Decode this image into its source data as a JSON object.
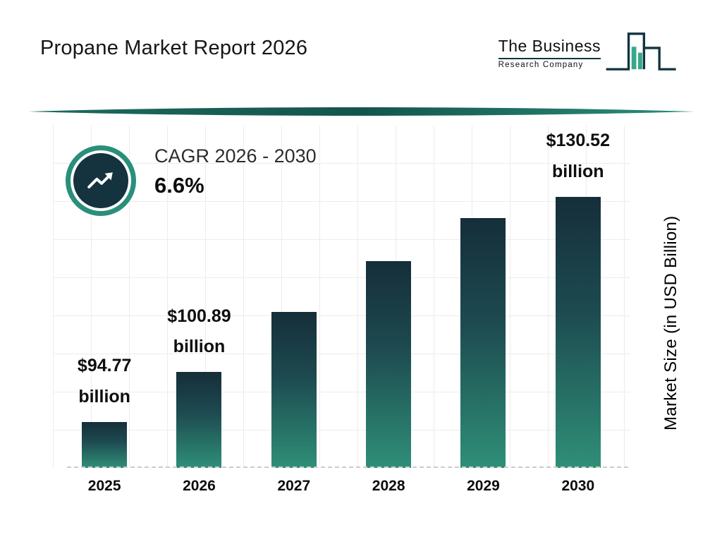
{
  "header": {
    "title": "Propane Market Report 2026",
    "logo": {
      "line1": "The Business",
      "line2": "Research Company"
    }
  },
  "cagr": {
    "label": "CAGR 2026 - 2030",
    "value": "6.6%"
  },
  "axis": {
    "y_label": "Market Size (in USD Billion)"
  },
  "chart_data": {
    "type": "bar",
    "title": "Propane Market Report 2026",
    "categories": [
      "2025",
      "2026",
      "2027",
      "2028",
      "2029",
      "2030"
    ],
    "values": [
      94.77,
      100.89,
      107.55,
      114.65,
      122.21,
      130.52
    ],
    "value_labels": [
      {
        "line1": "$94.77",
        "line2": "billion",
        "full": "$94.77 billion"
      },
      {
        "line1": "$100.89",
        "line2": "billion",
        "full": "$100.89 billion"
      },
      null,
      null,
      null,
      {
        "line1": "$130.52",
        "line2": "billion",
        "full": "$130.52 billion"
      }
    ],
    "xlabel": "",
    "ylabel": "Market Size (in USD Billion)",
    "ylim": [
      87.5,
      135
    ],
    "grid": true,
    "legend": "none",
    "cagr_annotation": {
      "label": "CAGR 2026 - 2030",
      "value": "6.6%"
    },
    "bar_height_pct": [
      13.5,
      28,
      45.5,
      60.5,
      73,
      81
    ],
    "colors": {
      "bar_gradient_top": "#152e3a",
      "bar_gradient_bottom": "#2f8f77",
      "accent_teal": "#2a8f7a",
      "badge_navy": "#14333f",
      "grid": "#ececec",
      "text": "#0e0e0e"
    }
  }
}
